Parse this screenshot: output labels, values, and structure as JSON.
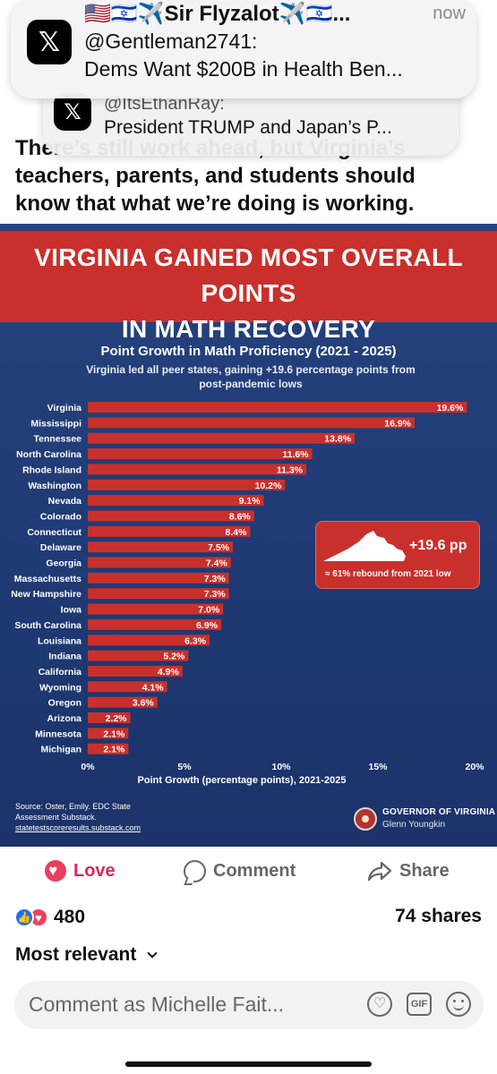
{
  "notifications": [
    {
      "sender": "🇺🇸🇮🇱✈️Sir Flyzalot✈️🇮🇱...",
      "time": "now",
      "line1": "@Gentleman2741:",
      "line2": "Dems Want $200B in Health Ben...",
      "icon": "x-logo-icon"
    },
    {
      "line1": "@ItsEthanRay:",
      "line2": "President TRUMP and Japan’s P...",
      "icon": "x-logo-icon"
    }
  ],
  "post": {
    "lines": [
      "There’s still work ahead, but Virginia’s",
      "teachers, parents, and students should",
      "know that what we’re doing is working."
    ]
  },
  "graphic": {
    "banner_lines": [
      "VIRGINIA GAINED MOST OVERALL POINTS",
      "IN MATH RECOVERY"
    ],
    "callout_value": "+19.6 pp",
    "callout_note": "≈ 61% rebound from 2021 low",
    "source_lines": [
      "Source: Oster, Emily. EDC State",
      "Assessment Substack."
    ],
    "source_link": "statetestscoreresults.substack.com",
    "gov_name": "GOVERNOR OF VIRGINIA",
    "gov_person": "Glenn Youngkin",
    "colors": {
      "banner": "#c9302c",
      "bar": "#c9302c",
      "background": "#22407a"
    }
  },
  "chart_data": {
    "type": "bar",
    "orientation": "horizontal",
    "title": "Point Growth in Math Proficiency (2021 - 2025)",
    "subtitle": "Virginia led all peer states, gaining +19.6 percentage points from post-pandemic lows",
    "xlabel": "Point Growth (percentage points), 2021-2025",
    "ylabel": "",
    "xlim": [
      0,
      20
    ],
    "x_ticks": [
      "0%",
      "5%",
      "10%",
      "15%",
      "20%"
    ],
    "categories": [
      "Virginia",
      "Mississippi",
      "Tennessee",
      "North Carolina",
      "Rhode Island",
      "Washington",
      "Nevada",
      "Colorado",
      "Connecticut",
      "Delaware",
      "Georgia",
      "Massachusetts",
      "New Hampshire",
      "Iowa",
      "South Carolina",
      "Louisiana",
      "Indiana",
      "California",
      "Wyoming",
      "Oregon",
      "Arizona",
      "Minnesota",
      "Michigan"
    ],
    "values": [
      19.6,
      16.9,
      13.8,
      11.6,
      11.3,
      10.2,
      9.1,
      8.6,
      8.4,
      7.5,
      7.4,
      7.3,
      7.3,
      7.0,
      6.9,
      6.3,
      5.2,
      4.9,
      4.1,
      3.6,
      2.2,
      2.1,
      2.1
    ],
    "value_labels": [
      "19.6%",
      "16.9%",
      "13.8%",
      "11.6%",
      "11.3%",
      "10.2%",
      "9.1%",
      "8.6%",
      "8.4%",
      "7.5%",
      "7.4%",
      "7.3%",
      "7.3%",
      "7.0%",
      "6.9%",
      "6.3%",
      "5.2%",
      "4.9%",
      "4.1%",
      "3.6%",
      "2.2%",
      "2.1%",
      "2.1%"
    ],
    "grid": false,
    "legend": "none"
  },
  "actions": {
    "love": "Love",
    "comment": "Comment",
    "share": "Share"
  },
  "stats": {
    "reactions": "480",
    "shares": "74 shares"
  },
  "sort_label": "Most relevant",
  "comment_box": {
    "placeholder": "Comment as Michelle Fait..."
  }
}
